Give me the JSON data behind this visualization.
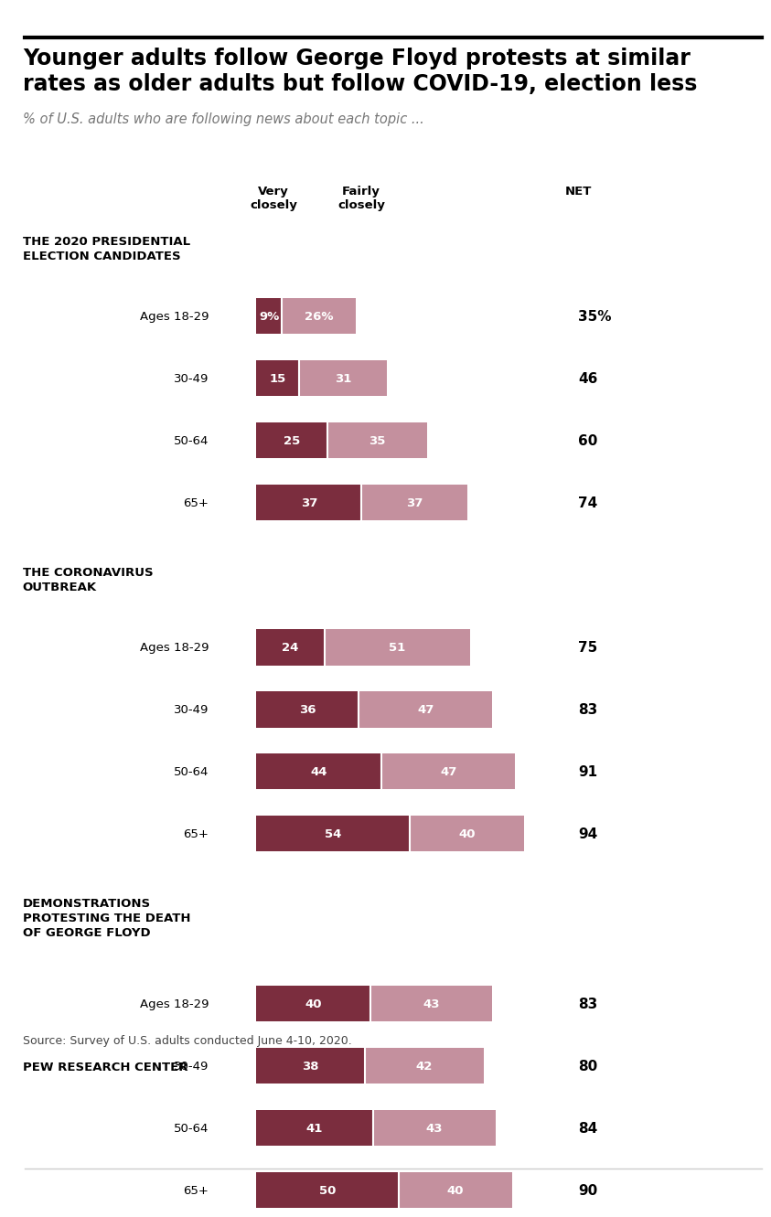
{
  "title": "Younger adults follow George Floyd protests at similar\nrates as older adults but follow COVID-19, election less",
  "subtitle": "% of U.S. adults who are following news about each topic ...",
  "source": "Source: Survey of U.S. adults conducted June 4-10, 2020.",
  "footer": "PEW RESEARCH CENTER",
  "color_dark": "#7b2d3e",
  "color_light": "#c4909e",
  "background": "#ffffff",
  "sections": [
    {
      "label": "THE 2020 PRESIDENTIAL\nELECTION CANDIDATES",
      "rows": [
        {
          "age": "Ages 18-29",
          "very": 9,
          "fairly": 26,
          "net": "35%"
        },
        {
          "age": "30-49",
          "very": 15,
          "fairly": 31,
          "net": "46"
        },
        {
          "age": "50-64",
          "very": 25,
          "fairly": 35,
          "net": "60"
        },
        {
          "age": "65+",
          "very": 37,
          "fairly": 37,
          "net": "74"
        }
      ]
    },
    {
      "label": "THE CORONAVIRUS\nOUTBREAK",
      "rows": [
        {
          "age": "Ages 18-29",
          "very": 24,
          "fairly": 51,
          "net": "75"
        },
        {
          "age": "30-49",
          "very": 36,
          "fairly": 47,
          "net": "83"
        },
        {
          "age": "50-64",
          "very": 44,
          "fairly": 47,
          "net": "91"
        },
        {
          "age": "65+",
          "very": 54,
          "fairly": 40,
          "net": "94"
        }
      ]
    },
    {
      "label": "DEMONSTRATIONS\nPROTESTING THE DEATH\nOF GEORGE FLOYD",
      "rows": [
        {
          "age": "Ages 18-29",
          "very": 40,
          "fairly": 43,
          "net": "83"
        },
        {
          "age": "30-49",
          "very": 38,
          "fairly": 42,
          "net": "80"
        },
        {
          "age": "50-64",
          "very": 41,
          "fairly": 43,
          "net": "84"
        },
        {
          "age": "65+",
          "very": 50,
          "fairly": 40,
          "net": "90"
        }
      ]
    }
  ],
  "col_header_very": "Very\nclosely",
  "col_header_fairly": "Fairly\nclosely",
  "col_header_net": "NET"
}
